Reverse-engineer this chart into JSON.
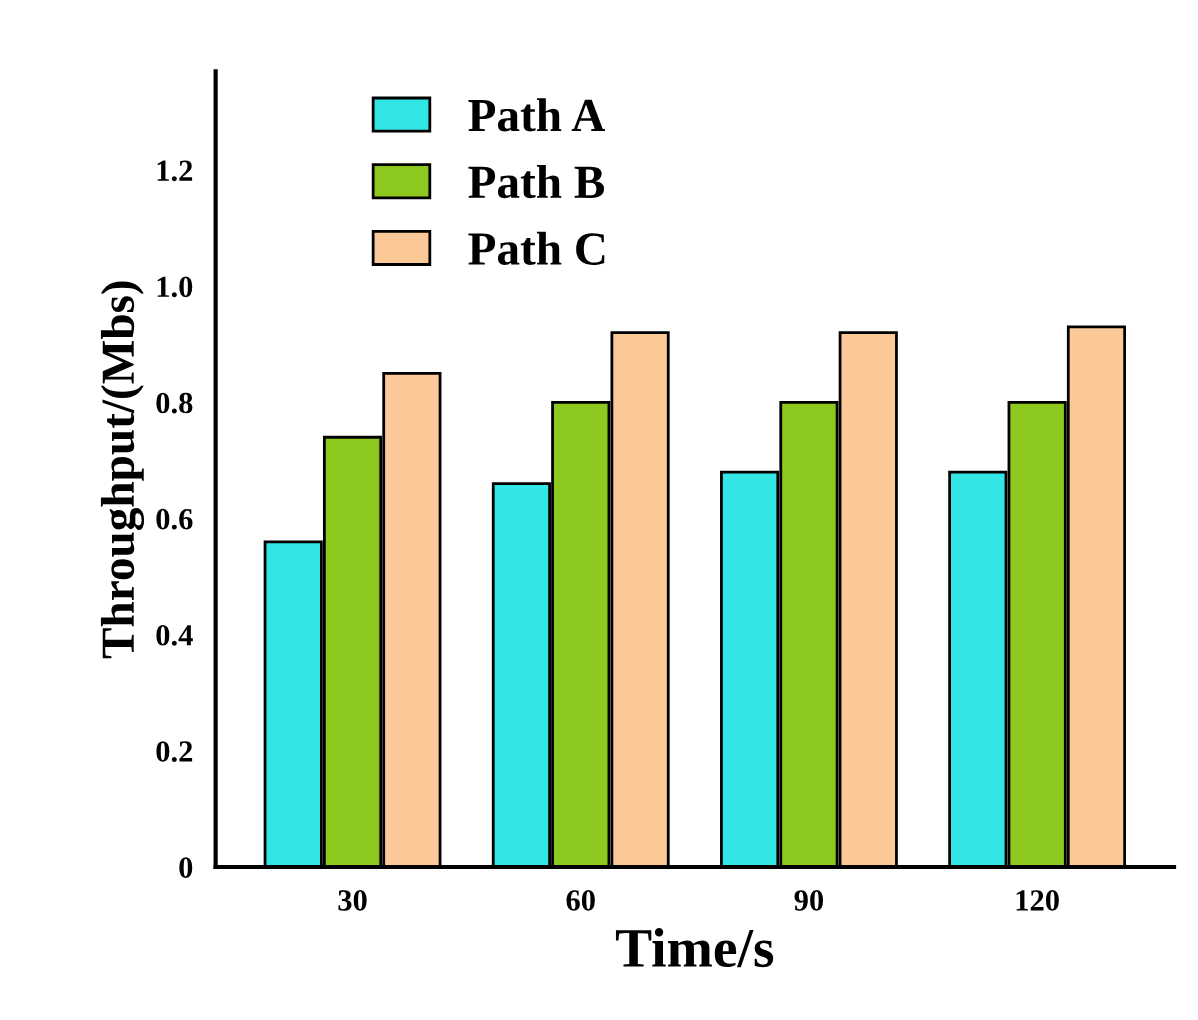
{
  "chart_data": {
    "type": "bar",
    "xlabel": "Time/s",
    "ylabel": "Throughput/(Mbs)",
    "categories": [
      "30",
      "60",
      "90",
      "120"
    ],
    "series": [
      {
        "name": "Path A",
        "color": "#33e6e6",
        "values": [
          0.56,
          0.66,
          0.68,
          0.68
        ]
      },
      {
        "name": "Path B",
        "color": "#8cc81e",
        "values": [
          0.74,
          0.8,
          0.8,
          0.8
        ]
      },
      {
        "name": "Path C",
        "color": "#fbc898",
        "values": [
          0.85,
          0.92,
          0.92,
          0.93
        ]
      }
    ],
    "ylim": [
      0,
      1.37
    ],
    "yticks": [
      0,
      0.2,
      0.4,
      0.6,
      0.8,
      {
        "value": 1,
        "label": "1.0"
      },
      1.2
    ],
    "grid": false,
    "legend": "top left"
  }
}
